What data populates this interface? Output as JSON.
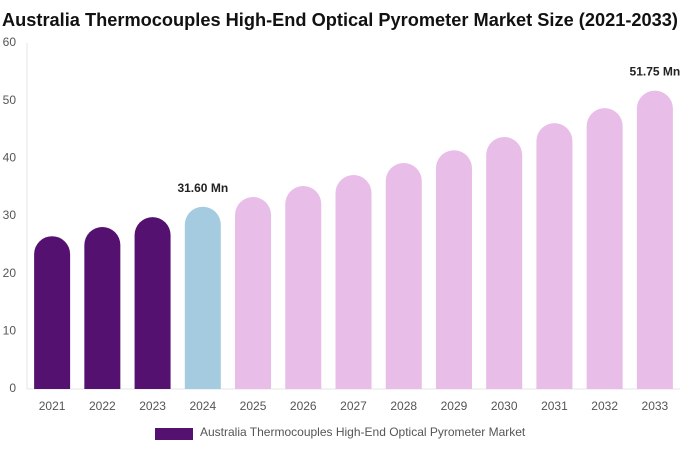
{
  "chart_data": {
    "type": "bar",
    "title": "Australia Thermocouples High-End Optical Pyrometer Market Size (2021-2033)",
    "categories": [
      "2021",
      "2022",
      "2023",
      "2024",
      "2025",
      "2026",
      "2027",
      "2028",
      "2029",
      "2030",
      "2031",
      "2032",
      "2033"
    ],
    "series": [
      {
        "name": "Australia Thermocouples High-End Optical Pyrometer Market",
        "color": "#541170",
        "values": [
          26.5,
          28.1,
          29.8,
          31.6,
          33.3,
          35.2,
          37.1,
          39.2,
          41.4,
          43.7,
          46.1,
          48.7,
          51.75
        ],
        "value_labels": [
          null,
          null,
          null,
          "31.60 Mn",
          null,
          null,
          null,
          null,
          null,
          null,
          null,
          null,
          "51.75 Mn"
        ],
        "colors": [
          "#541170",
          "#541170",
          "#541170",
          "#a5cbe0",
          "#e8bde8",
          "#e8bde8",
          "#e8bde8",
          "#e8bde8",
          "#e8bde8",
          "#e8bde8",
          "#e8bde8",
          "#e8bde8",
          "#e8bde8"
        ]
      }
    ],
    "ylim": [
      0,
      60
    ],
    "yticks": [
      0,
      10,
      20,
      30,
      40,
      50,
      60
    ],
    "grid": false,
    "legend": "bottom"
  }
}
